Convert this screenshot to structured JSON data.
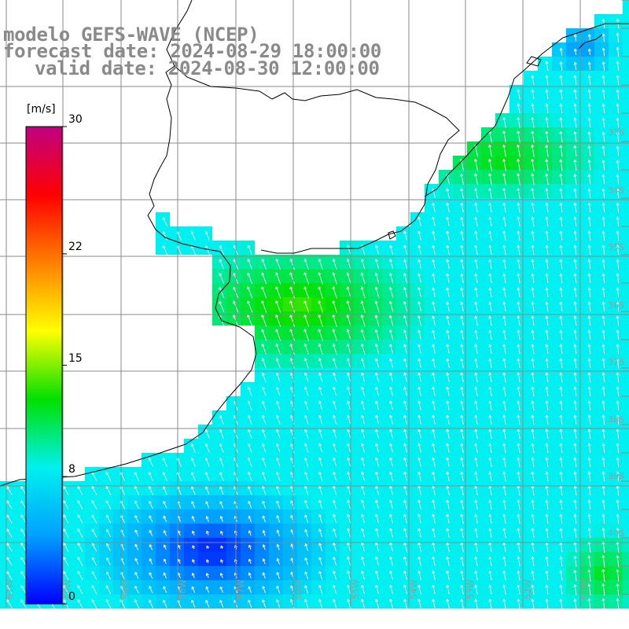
{
  "header": {
    "model": "modelo GEFS-WAVE (NCEP)",
    "forecast_date": "forecast date: 2024-08-29 18:00:00",
    "valid_date": "valid date: 2024-08-30 12:00:00"
  },
  "colorbar": {
    "unit": "[m/s]",
    "ticks": [
      {
        "label": "30",
        "value": 30
      },
      {
        "label": "22",
        "value": 22
      },
      {
        "label": "15",
        "value": 15
      },
      {
        "label": "8",
        "value": 8
      },
      {
        "label": "0",
        "value": 0
      }
    ],
    "range": [
      0,
      30
    ],
    "colors": [
      "#0000ff",
      "#00a0ff",
      "#00f0f0",
      "#00e000",
      "#ffff00",
      "#ff8000",
      "#ff0000",
      "#c00080"
    ]
  },
  "grid": {
    "lat_labels": [
      "33S",
      "34S",
      "35S",
      "36S",
      "37S",
      "38S",
      "39S",
      "40S"
    ],
    "lon_labels": [
      "61W",
      "60W",
      "59W",
      "58W",
      "57W",
      "56W",
      "55W",
      "54W",
      "53W",
      "52W",
      "51W"
    ]
  },
  "colors": {
    "land": "#ffffff",
    "coast": "#000000",
    "grid_line": "#8a8a8a",
    "arrow": "#ffffff",
    "header_text": "#8a8a8a"
  }
}
